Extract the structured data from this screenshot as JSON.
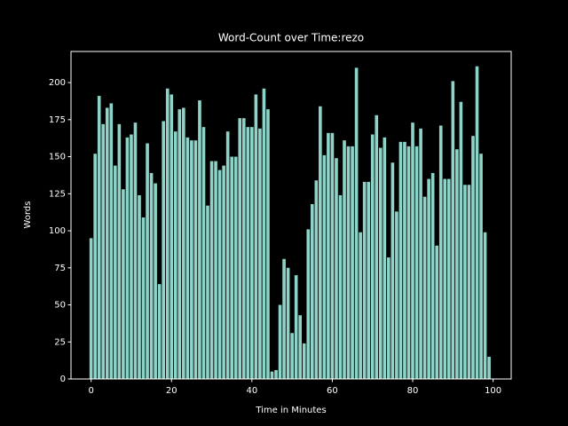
{
  "chart_data": {
    "type": "bar",
    "title": "Word-Count over Time:rezo",
    "x_label": "Time in Minutes",
    "y_label": "Words",
    "x": [
      0,
      1,
      2,
      3,
      4,
      5,
      6,
      7,
      8,
      9,
      10,
      11,
      12,
      13,
      14,
      15,
      16,
      17,
      18,
      19,
      20,
      21,
      22,
      23,
      24,
      25,
      26,
      27,
      28,
      29,
      30,
      31,
      32,
      33,
      34,
      35,
      36,
      37,
      38,
      39,
      40,
      41,
      42,
      43,
      44,
      45,
      46,
      47,
      48,
      49,
      50,
      51,
      52,
      53,
      54,
      55,
      56,
      57,
      58,
      59,
      60,
      61,
      62,
      63,
      64,
      65,
      66,
      67,
      68,
      69,
      70,
      71,
      72,
      73,
      74,
      75,
      76,
      77,
      78,
      79,
      80,
      81,
      82,
      83,
      84,
      85,
      86,
      87,
      88,
      89,
      90,
      91,
      92,
      93,
      94,
      95,
      96,
      97,
      98,
      99
    ],
    "values": [
      95,
      152,
      191,
      172,
      183,
      186,
      144,
      172,
      128,
      163,
      165,
      173,
      124,
      109,
      159,
      139,
      132,
      64,
      174,
      196,
      192,
      167,
      182,
      183,
      163,
      161,
      161,
      188,
      170,
      117,
      147,
      147,
      141,
      144,
      167,
      150,
      150,
      176,
      176,
      170,
      170,
      192,
      169,
      196,
      182,
      5,
      6,
      50,
      81,
      75,
      31,
      70,
      43,
      24,
      101,
      118,
      134,
      184,
      151,
      166,
      166,
      149,
      124,
      161,
      157,
      157,
      210,
      99,
      133,
      133,
      165,
      178,
      156,
      163,
      82,
      146,
      113,
      160,
      160,
      157,
      173,
      157,
      169,
      123,
      135,
      139,
      90,
      171,
      135,
      135,
      201,
      155,
      187,
      131,
      131,
      164,
      211,
      152,
      99,
      15
    ],
    "color": "#8dd3c7",
    "bar_width": 0.8,
    "xlim": [
      -5.0,
      104.5
    ],
    "ylim": [
      0,
      221
    ],
    "xticks": [
      0,
      20,
      40,
      60,
      80,
      100
    ],
    "yticks": [
      0,
      25,
      50,
      75,
      100,
      125,
      150,
      175,
      200
    ]
  }
}
